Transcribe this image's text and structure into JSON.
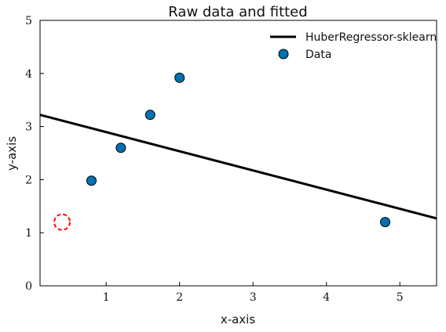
{
  "chart_data": {
    "type": "scatter",
    "title": "Raw data and fitted",
    "xlabel": "x-axis",
    "ylabel": "y-axis",
    "xlim": [
      0.1,
      5.5
    ],
    "ylim": [
      0,
      5
    ],
    "xticks": [
      1,
      2,
      3,
      4,
      5
    ],
    "yticks": [
      0,
      1,
      2,
      3,
      4,
      5
    ],
    "grid": false,
    "legend_position": "top-right",
    "series": [
      {
        "name": "HuberRegressor-sklearn",
        "kind": "line",
        "color": "#000000",
        "x": [
          0.1,
          5.5
        ],
        "y": [
          3.22,
          1.27
        ]
      },
      {
        "name": "Data",
        "kind": "scatter",
        "color": "#0072b2",
        "x": [
          0.8,
          1.2,
          1.6,
          2.0,
          4.8
        ],
        "y": [
          1.98,
          2.6,
          3.22,
          3.92,
          1.2
        ]
      }
    ],
    "annotations": [
      {
        "kind": "outlier-circle",
        "color": "#ff0000",
        "x": 0.4,
        "y": 1.2
      }
    ]
  }
}
